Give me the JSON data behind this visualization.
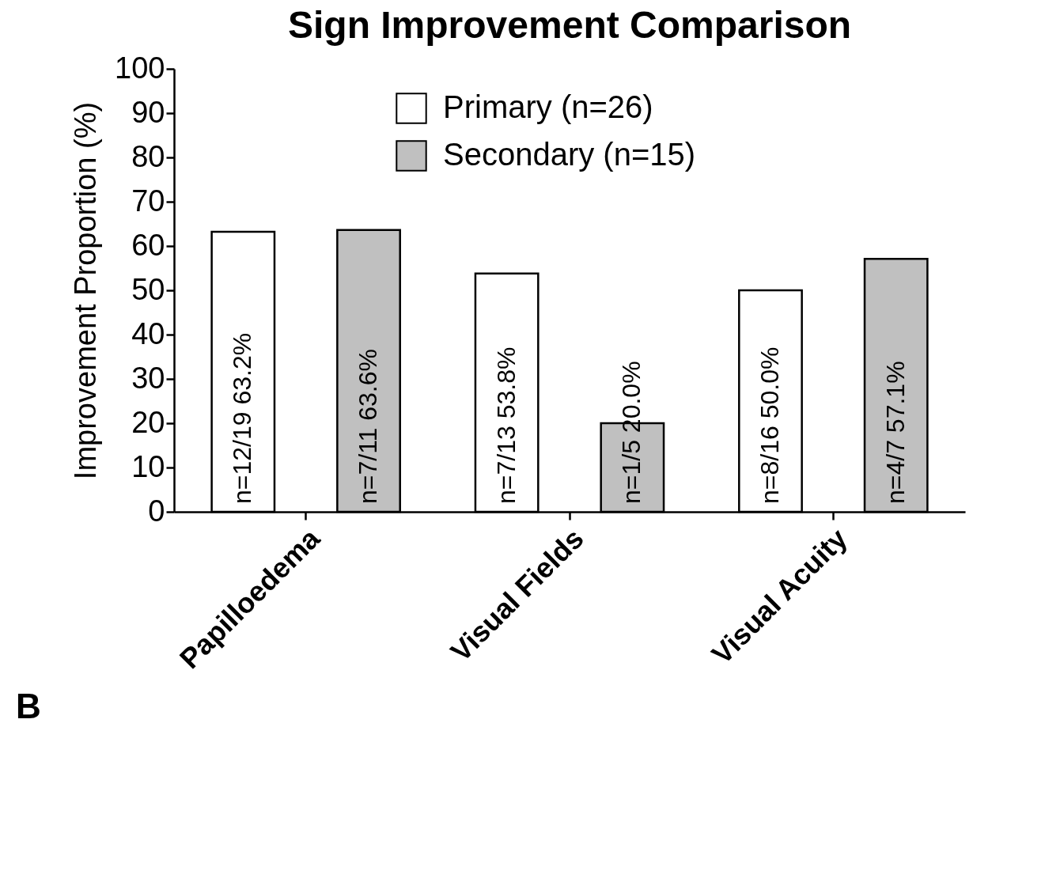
{
  "chart_data": {
    "type": "bar",
    "title": "Sign Improvement Comparison",
    "ylabel": "Improvement Proportion (%)",
    "categories": [
      "Papilloedema",
      "Visual Fields",
      "Visual Acuity"
    ],
    "series": [
      {
        "name": "Primary (n=26)",
        "color": "#ffffff",
        "values": [
          63.2,
          53.8,
          50.0
        ],
        "value_labels": [
          "n=12/19  63.2%",
          "n=7/13  53.8%",
          "n=8/16  50.0%"
        ]
      },
      {
        "name": "Secondary (n=15)",
        "color": "#c0c0c0",
        "values": [
          63.6,
          20.0,
          57.1
        ],
        "value_labels": [
          "n=7/11  63.6%",
          "n=1/5  20.0%",
          "n=4/7  57.1%"
        ]
      }
    ],
    "ylim": [
      0,
      100
    ],
    "yticks": [
      0,
      10,
      20,
      30,
      40,
      50,
      60,
      70,
      80,
      90,
      100
    ],
    "grid": false,
    "legend": "top right",
    "annotations": [
      "B"
    ]
  }
}
